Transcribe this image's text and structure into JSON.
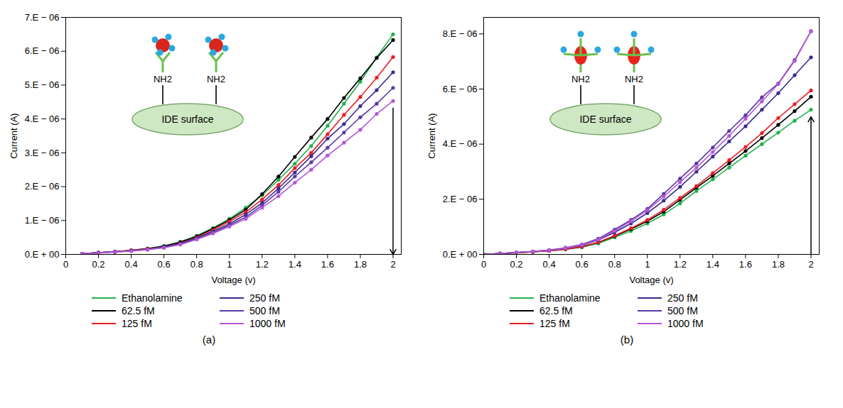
{
  "chart_data": [
    {
      "type": "line",
      "title": "(a)",
      "x_label": "Voltage (v)",
      "y_label": "Current (A)",
      "annotations": [
        "NH2",
        "NH2",
        "IDE surface"
      ],
      "x": [
        0.1,
        0.2,
        0.3,
        0.4,
        0.5,
        0.6,
        0.7,
        0.8,
        0.9,
        1.0,
        1.1,
        1.2,
        1.3,
        1.4,
        1.5,
        1.6,
        1.7,
        1.8,
        1.9,
        2.0
      ],
      "xlim": [
        0,
        2.05
      ],
      "xticks": [
        0,
        0.2,
        0.4,
        0.6,
        0.8,
        1,
        1.2,
        1.4,
        1.6,
        1.8,
        2
      ],
      "ylim": [
        0,
        7e-06
      ],
      "yticks": [
        {
          "value": 0,
          "label": "0.E + 00"
        },
        {
          "value": 1e-06,
          "label": "1.E − 06"
        },
        {
          "value": 2e-06,
          "label": "2.E − 06"
        },
        {
          "value": 3e-06,
          "label": "3.E − 06"
        },
        {
          "value": 4e-06,
          "label": "4.E − 06"
        },
        {
          "value": 5e-06,
          "label": "5.E − 06"
        },
        {
          "value": 6e-06,
          "label": "6.E − 06"
        },
        {
          "value": 7e-06,
          "label": "7.E − 06"
        }
      ],
      "grid": false,
      "legend": "bottom",
      "marker": "circle",
      "series": [
        {
          "name": "Ethanolamine",
          "color": "#22b14c",
          "values": [
            2e-08,
            5e-08,
            8e-08,
            1.2e-07,
            1.7e-07,
            2.5e-07,
            3.7e-07,
            5.5e-07,
            7.8e-07,
            1.05e-06,
            1.38e-06,
            1.75e-06,
            2.2e-06,
            2.68e-06,
            3.2e-06,
            3.8e-06,
            4.45e-06,
            5.1e-06,
            5.82e-06,
            6.5e-06
          ]
        },
        {
          "name": "62.5 fM",
          "color": "#000000",
          "values": [
            2e-08,
            5e-08,
            8e-08,
            1.2e-07,
            1.7e-07,
            2.4e-07,
            3.6e-07,
            5.3e-07,
            7.6e-07,
            1.02e-06,
            1.32e-06,
            1.78e-06,
            2.3e-06,
            2.88e-06,
            3.45e-06,
            4e-06,
            4.62e-06,
            5.2e-06,
            5.8e-06,
            6.33e-06
          ]
        },
        {
          "name": "125 fM",
          "color": "#ee1c24",
          "values": [
            2e-08,
            5e-08,
            8e-08,
            1.2e-07,
            1.6e-07,
            2.2e-07,
            3.3e-07,
            5e-07,
            7.2e-07,
            9.7e-07,
            1.25e-06,
            1.62e-06,
            2.05e-06,
            2.55e-06,
            3e-06,
            3.55e-06,
            4.12e-06,
            4.65e-06,
            5.22e-06,
            5.83e-06
          ]
        },
        {
          "name": "250 fM",
          "color": "#3b2b8f",
          "values": [
            2e-08,
            5e-08,
            8e-08,
            1.1e-07,
            1.5e-07,
            2.2e-07,
            3.2e-07,
            4.8e-07,
            6.8e-07,
            9e-07,
            1.18e-06,
            1.52e-06,
            1.95e-06,
            2.42e-06,
            2.9e-06,
            3.42e-06,
            3.85e-06,
            4.38e-06,
            4.85e-06,
            5.38e-06
          ]
        },
        {
          "name": "500 fM",
          "color": "#5a3aa8",
          "values": [
            2e-08,
            5e-08,
            7e-08,
            1e-07,
            1.4e-07,
            2e-07,
            3e-07,
            4.6e-07,
            6.4e-07,
            8.6e-07,
            1.1e-06,
            1.45e-06,
            1.85e-06,
            2.3e-06,
            2.72e-06,
            3.15e-06,
            3.6e-06,
            4.05e-06,
            4.45e-06,
            4.92e-06
          ]
        },
        {
          "name": "1000 fM",
          "color": "#b655d6",
          "values": [
            2e-08,
            4e-08,
            7e-08,
            1e-07,
            1.4e-07,
            2e-07,
            2.9e-07,
            4.4e-07,
            6.2e-07,
            8.2e-07,
            1.05e-06,
            1.38e-06,
            1.72e-06,
            2.12e-06,
            2.5e-06,
            2.92e-06,
            3.3e-06,
            3.68e-06,
            4.15e-06,
            4.53e-06
          ]
        }
      ]
    },
    {
      "type": "line",
      "title": "(b)",
      "x_label": "Voltage (v)",
      "y_label": "Current (A)",
      "annotations": [
        "NH2",
        "NH2",
        "IDE surface"
      ],
      "x": [
        0,
        0.1,
        0.2,
        0.3,
        0.4,
        0.5,
        0.6,
        0.7,
        0.8,
        0.9,
        1.0,
        1.1,
        1.2,
        1.3,
        1.4,
        1.5,
        1.6,
        1.7,
        1.8,
        1.9,
        2.0
      ],
      "xlim": [
        0,
        2.05
      ],
      "xticks": [
        0,
        0.2,
        0.4,
        0.6,
        0.8,
        1,
        1.2,
        1.4,
        1.6,
        1.8,
        2
      ],
      "ylim": [
        0,
        8.6e-06
      ],
      "yticks": [
        {
          "value": 0,
          "label": "0.E + 00"
        },
        {
          "value": 2e-06,
          "label": "2.E − 06"
        },
        {
          "value": 4e-06,
          "label": "4.E − 06"
        },
        {
          "value": 6e-06,
          "label": "6.E − 06"
        },
        {
          "value": 8e-06,
          "label": "8.E − 06"
        }
      ],
      "grid": false,
      "legend": "bottom",
      "marker": "circle",
      "series": [
        {
          "name": "Ethanolamine",
          "color": "#22b14c",
          "values": [
            0,
            3e-08,
            6e-08,
            9e-08,
            1.3e-07,
            1.8e-07,
            2.6e-07,
            4e-07,
            6.2e-07,
            8.5e-07,
            1.12e-06,
            1.45e-06,
            1.85e-06,
            2.3e-06,
            2.72e-06,
            3.15e-06,
            3.58e-06,
            4e-06,
            4.42e-06,
            4.85e-06,
            5.25e-06
          ]
        },
        {
          "name": "62.5 fM",
          "color": "#000000",
          "values": [
            0,
            3e-08,
            6e-08,
            9e-08,
            1.3e-07,
            1.9e-07,
            2.8e-07,
            4.3e-07,
            6.6e-07,
            9.2e-07,
            1.2e-06,
            1.55e-06,
            1.98e-06,
            2.42e-06,
            2.85e-06,
            3.3e-06,
            3.75e-06,
            4.22e-06,
            4.7e-06,
            5.2e-06,
            5.72e-06
          ]
        },
        {
          "name": "125 fM",
          "color": "#ee1c24",
          "values": [
            0,
            3e-08,
            6e-08,
            9e-08,
            1.3e-07,
            1.9e-07,
            2.8e-07,
            4.4e-07,
            6.8e-07,
            9.5e-07,
            1.25e-06,
            1.62e-06,
            2.05e-06,
            2.48e-06,
            2.95e-06,
            3.42e-06,
            3.9e-06,
            4.4e-06,
            4.95e-06,
            5.45e-06,
            5.95e-06
          ]
        },
        {
          "name": "250 fM",
          "color": "#3b2b8f",
          "values": [
            0,
            3e-08,
            7e-08,
            1e-07,
            1.5e-07,
            2.2e-07,
            3.3e-07,
            5.2e-07,
            8e-07,
            1.12e-06,
            1.5e-06,
            1.95e-06,
            2.45e-06,
            3e-06,
            3.55e-06,
            4.1e-06,
            4.65e-06,
            5.25e-06,
            5.85e-06,
            6.5e-06,
            7.15e-06
          ]
        },
        {
          "name": "500 fM",
          "color": "#5a3aa8",
          "values": [
            0,
            3e-08,
            7e-08,
            1.1e-07,
            1.6e-07,
            2.4e-07,
            3.6e-07,
            5.7e-07,
            9e-07,
            1.25e-06,
            1.65e-06,
            2.2e-06,
            2.75e-06,
            3.3e-06,
            3.88e-06,
            4.48e-06,
            5.05e-06,
            5.7e-06,
            6.2e-06,
            7.05e-06,
            8.1e-06
          ]
        },
        {
          "name": "1000 fM",
          "color": "#b655d6",
          "values": [
            0,
            3e-08,
            7e-08,
            1e-07,
            1.5e-07,
            2.2e-07,
            3.4e-07,
            5.4e-07,
            8.5e-07,
            1.2e-06,
            1.6e-06,
            2.1e-06,
            2.62e-06,
            3.15e-06,
            3.72e-06,
            4.3e-06,
            4.92e-06,
            5.55e-06,
            6.18e-06,
            7.02e-06,
            8.1e-06
          ]
        }
      ]
    }
  ]
}
